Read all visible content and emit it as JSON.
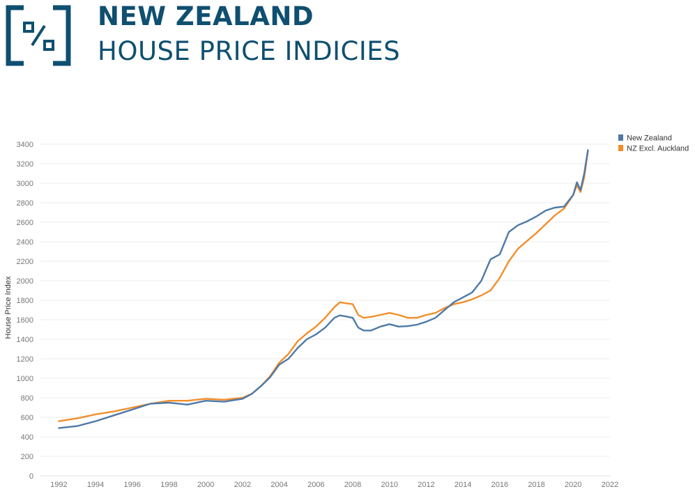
{
  "header": {
    "title": "NEW ZEALAND",
    "subtitle": "HOUSE PRICE INDICIES",
    "logo_icon": "percent-box-icon",
    "brand_color": "#0f4f70"
  },
  "chart_data": {
    "type": "line",
    "ylabel": "House Price Index",
    "xlabel": "",
    "ylim": [
      0,
      3450
    ],
    "xlim": [
      1991.0,
      2022.0
    ],
    "y_ticks": [
      0,
      200,
      400,
      600,
      800,
      1000,
      1200,
      1400,
      1600,
      1800,
      2000,
      2200,
      2400,
      2600,
      2800,
      3000,
      3200,
      3400
    ],
    "x_ticks": [
      1992,
      1994,
      1996,
      1998,
      2000,
      2002,
      2004,
      2006,
      2008,
      2010,
      2012,
      2014,
      2016,
      2018,
      2020,
      2022
    ],
    "grid": true,
    "legend_position": "top-right",
    "series": [
      {
        "name": "New Zealand",
        "color": "#4e79a7",
        "x": [
          1992.0,
          1993.0,
          1994.0,
          1995.0,
          1996.0,
          1997.0,
          1998.0,
          1999.0,
          2000.0,
          2001.0,
          2002.0,
          2002.5,
          2003.0,
          2003.5,
          2004.0,
          2004.5,
          2005.0,
          2005.5,
          2006.0,
          2006.5,
          2007.0,
          2007.3,
          2007.6,
          2008.0,
          2008.3,
          2008.6,
          2009.0,
          2009.5,
          2010.0,
          2010.5,
          2011.0,
          2011.5,
          2012.0,
          2012.5,
          2013.0,
          2013.5,
          2014.0,
          2014.5,
          2015.0,
          2015.5,
          2016.0,
          2016.5,
          2017.0,
          2017.5,
          2018.0,
          2018.5,
          2019.0,
          2019.5,
          2020.0,
          2020.2,
          2020.4,
          2020.6,
          2020.8
        ],
        "values": [
          490,
          510,
          560,
          620,
          680,
          740,
          750,
          730,
          770,
          760,
          790,
          840,
          920,
          1010,
          1140,
          1200,
          1310,
          1400,
          1450,
          1520,
          1620,
          1645,
          1635,
          1620,
          1520,
          1490,
          1490,
          1530,
          1555,
          1530,
          1535,
          1550,
          1580,
          1620,
          1700,
          1780,
          1830,
          1880,
          2000,
          2220,
          2270,
          2500,
          2570,
          2610,
          2660,
          2720,
          2750,
          2760,
          2880,
          3010,
          2930,
          3100,
          3340
        ]
      },
      {
        "name": "NZ Excl. Auckland",
        "color": "#f28e2b",
        "x": [
          1992.0,
          1993.0,
          1994.0,
          1995.0,
          1996.0,
          1997.0,
          1998.0,
          1999.0,
          2000.0,
          2001.0,
          2002.0,
          2002.5,
          2003.0,
          2003.5,
          2004.0,
          2004.5,
          2005.0,
          2005.5,
          2006.0,
          2006.5,
          2007.0,
          2007.3,
          2007.6,
          2008.0,
          2008.3,
          2008.6,
          2009.0,
          2009.5,
          2010.0,
          2010.5,
          2011.0,
          2011.5,
          2012.0,
          2012.5,
          2013.0,
          2013.5,
          2014.0,
          2014.5,
          2015.0,
          2015.5,
          2016.0,
          2016.5,
          2017.0,
          2017.5,
          2018.0,
          2018.5,
          2019.0,
          2019.5,
          2020.0,
          2020.2,
          2020.4,
          2020.6,
          2020.8
        ],
        "values": [
          560,
          590,
          630,
          660,
          700,
          740,
          770,
          770,
          790,
          780,
          800,
          840,
          920,
          1020,
          1160,
          1250,
          1380,
          1460,
          1530,
          1620,
          1730,
          1780,
          1770,
          1760,
          1650,
          1620,
          1630,
          1650,
          1670,
          1650,
          1620,
          1620,
          1650,
          1670,
          1720,
          1760,
          1780,
          1810,
          1850,
          1900,
          2030,
          2200,
          2330,
          2410,
          2490,
          2580,
          2670,
          2740,
          2880,
          2980,
          2910,
          3060,
          3330
        ]
      }
    ]
  }
}
